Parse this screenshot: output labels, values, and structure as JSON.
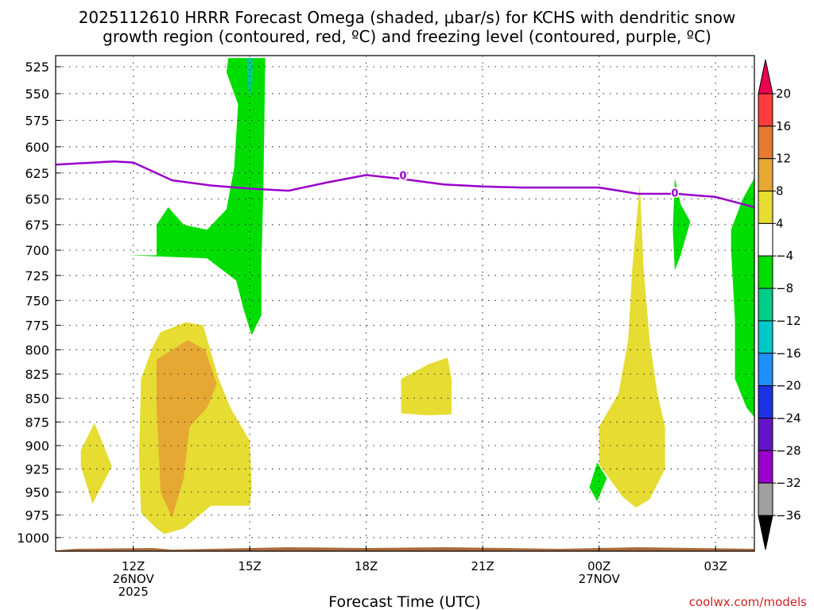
{
  "chart_data": {
    "type": "contour",
    "title_line1": "2025112610 HRRR Forecast Omega (shaded, μbar/s) for KCHS with dendritic snow",
    "title_line2": "growth region (contoured, red, ºC) and freezing level (contoured, purple, ºC)",
    "xlabel": "Forecast Time (UTC)",
    "ylabel": "",
    "credit": "coolwx.com/models",
    "y_levels": [
      525,
      550,
      575,
      600,
      625,
      650,
      675,
      700,
      725,
      750,
      775,
      800,
      825,
      850,
      875,
      900,
      925,
      950,
      975,
      1000
    ],
    "x_range_hours": [
      -2.0,
      16.0
    ],
    "x_ticks": [
      {
        "hour": 0,
        "line1": "12Z",
        "line2": "26NOV",
        "line3": "2025"
      },
      {
        "hour": 3,
        "line1": "15Z",
        "line2": "",
        "line3": ""
      },
      {
        "hour": 6,
        "line1": "18Z",
        "line2": "",
        "line3": ""
      },
      {
        "hour": 9,
        "line1": "21Z",
        "line2": "",
        "line3": ""
      },
      {
        "hour": 12,
        "line1": "00Z",
        "line2": "27NOV",
        "line3": ""
      },
      {
        "hour": 15,
        "line1": "03Z",
        "line2": "",
        "line3": ""
      }
    ],
    "freezing_level": {
      "label": "0",
      "color": "#9900cc",
      "points": [
        [
          -2.0,
          617
        ],
        [
          -1.0,
          615
        ],
        [
          -0.5,
          614
        ],
        [
          0.0,
          615
        ],
        [
          1.0,
          632
        ],
        [
          2.0,
          637
        ],
        [
          3.0,
          640
        ],
        [
          4.0,
          642
        ],
        [
          5.0,
          634
        ],
        [
          6.0,
          627
        ],
        [
          7.0,
          631
        ],
        [
          8.0,
          636
        ],
        [
          9.0,
          638
        ],
        [
          10.0,
          639
        ],
        [
          12.0,
          639
        ],
        [
          13.0,
          645
        ],
        [
          14.0,
          645
        ],
        [
          15.0,
          648
        ],
        [
          16.0,
          658
        ]
      ],
      "label_positions": [
        [
          6.95,
          627
        ],
        [
          13.95,
          644
        ]
      ]
    },
    "regions": [
      {
        "name": "uplift-upper",
        "color": "#00dd00",
        "points": [
          [
            2.45,
            517
          ],
          [
            3.4,
            517
          ],
          [
            3.35,
            640
          ],
          [
            3.3,
            715
          ],
          [
            3.3,
            765
          ],
          [
            3.05,
            785
          ],
          [
            2.85,
            760
          ],
          [
            2.65,
            730
          ],
          [
            1.9,
            708
          ],
          [
            -0.15,
            705
          ],
          [
            0.6,
            705
          ],
          [
            0.6,
            675
          ],
          [
            0.9,
            658
          ],
          [
            1.3,
            675
          ],
          [
            1.9,
            680
          ],
          [
            2.4,
            660
          ],
          [
            2.6,
            620
          ],
          [
            2.7,
            560
          ],
          [
            2.4,
            530
          ]
        ]
      },
      {
        "name": "uplift-upper-core",
        "color": "#00cc88",
        "points": [
          [
            2.92,
            517
          ],
          [
            3.08,
            517
          ],
          [
            3.07,
            540
          ],
          [
            3.0,
            555
          ],
          [
            2.94,
            540
          ]
        ]
      },
      {
        "name": "uplift-mid-small",
        "color": "#00dd00",
        "points": [
          [
            11.75,
            945
          ],
          [
            11.95,
            960
          ],
          [
            12.2,
            935
          ],
          [
            11.95,
            918
          ]
        ]
      },
      {
        "name": "uplift-right-a",
        "color": "#00dd00",
        "points": [
          [
            13.95,
            630
          ],
          [
            14.1,
            655
          ],
          [
            14.35,
            672
          ],
          [
            14.1,
            705
          ],
          [
            13.95,
            720
          ],
          [
            13.9,
            680
          ]
        ]
      },
      {
        "name": "uplift-right-b",
        "color": "#00dd00",
        "points": [
          [
            16.0,
            630
          ],
          [
            15.7,
            650
          ],
          [
            15.4,
            680
          ],
          [
            15.4,
            700
          ],
          [
            15.5,
            770
          ],
          [
            15.5,
            830
          ],
          [
            15.8,
            860
          ],
          [
            16.0,
            870
          ]
        ]
      },
      {
        "name": "subsidence-left-small",
        "color": "#e6dc32",
        "points": [
          [
            -1.35,
            922
          ],
          [
            -1.05,
            963
          ],
          [
            -0.55,
            922
          ],
          [
            -1.0,
            876
          ],
          [
            -1.35,
            905
          ]
        ]
      },
      {
        "name": "subsidence-main",
        "color": "#e6dc32",
        "points": [
          [
            0.2,
            830
          ],
          [
            0.5,
            797
          ],
          [
            0.7,
            782
          ],
          [
            1.35,
            772
          ],
          [
            1.8,
            775
          ],
          [
            2.2,
            830
          ],
          [
            2.5,
            860
          ],
          [
            3.0,
            895
          ],
          [
            3.05,
            945
          ],
          [
            3.0,
            965
          ],
          [
            2.0,
            965
          ],
          [
            1.3,
            990
          ],
          [
            0.8,
            996
          ],
          [
            0.6,
            990
          ],
          [
            0.2,
            973
          ],
          [
            0.15,
            910
          ]
        ]
      },
      {
        "name": "subsidence-core",
        "color": "#e6a832",
        "points": [
          [
            0.6,
            810
          ],
          [
            1.4,
            790
          ],
          [
            1.85,
            800
          ],
          [
            2.15,
            835
          ],
          [
            1.9,
            860
          ],
          [
            1.45,
            880
          ],
          [
            1.3,
            935
          ],
          [
            1.0,
            978
          ],
          [
            0.7,
            950
          ],
          [
            0.65,
            900
          ],
          [
            0.6,
            860
          ]
        ]
      },
      {
        "name": "subsidence-mid",
        "color": "#e6dc32",
        "points": [
          [
            6.9,
            830
          ],
          [
            7.6,
            815
          ],
          [
            8.1,
            808
          ],
          [
            8.2,
            830
          ],
          [
            8.2,
            867
          ],
          [
            7.6,
            868
          ],
          [
            6.9,
            866
          ]
        ]
      },
      {
        "name": "subsidence-right",
        "color": "#e6dc32",
        "points": [
          [
            13.05,
            635
          ],
          [
            12.85,
            720
          ],
          [
            12.75,
            790
          ],
          [
            12.5,
            845
          ],
          [
            12.0,
            880
          ],
          [
            12.0,
            920
          ],
          [
            12.6,
            955
          ],
          [
            12.95,
            967
          ],
          [
            13.3,
            958
          ],
          [
            13.7,
            925
          ],
          [
            13.7,
            880
          ],
          [
            13.5,
            845
          ],
          [
            13.3,
            790
          ],
          [
            13.15,
            720
          ]
        ]
      }
    ],
    "ground_color": "#a86a3a",
    "ground_top": [
      [
        -2.0,
        1018
      ],
      [
        -1.5,
        1016
      ],
      [
        0.5,
        1015
      ],
      [
        1.0,
        1017
      ],
      [
        4.0,
        1014
      ],
      [
        6.0,
        1015
      ],
      [
        8.0,
        1014
      ],
      [
        11.0,
        1016
      ],
      [
        13.0,
        1014
      ],
      [
        16.0,
        1016
      ]
    ],
    "colorbar": {
      "labels": [
        "20",
        "16",
        "12",
        "8",
        "4",
        "−4",
        "−8",
        "−12",
        "−16",
        "−20",
        "−24",
        "−28",
        "−32",
        "−36"
      ],
      "colors": [
        "#e6004f",
        "#ff3b3b",
        "#e67a32",
        "#e6a832",
        "#e6dc32",
        "#ffffff",
        "#00dd00",
        "#00cc88",
        "#00c8c8",
        "#1e90ff",
        "#1e32e6",
        "#6414c8",
        "#9900cc",
        "#a0a0a0",
        "#000000"
      ]
    }
  }
}
